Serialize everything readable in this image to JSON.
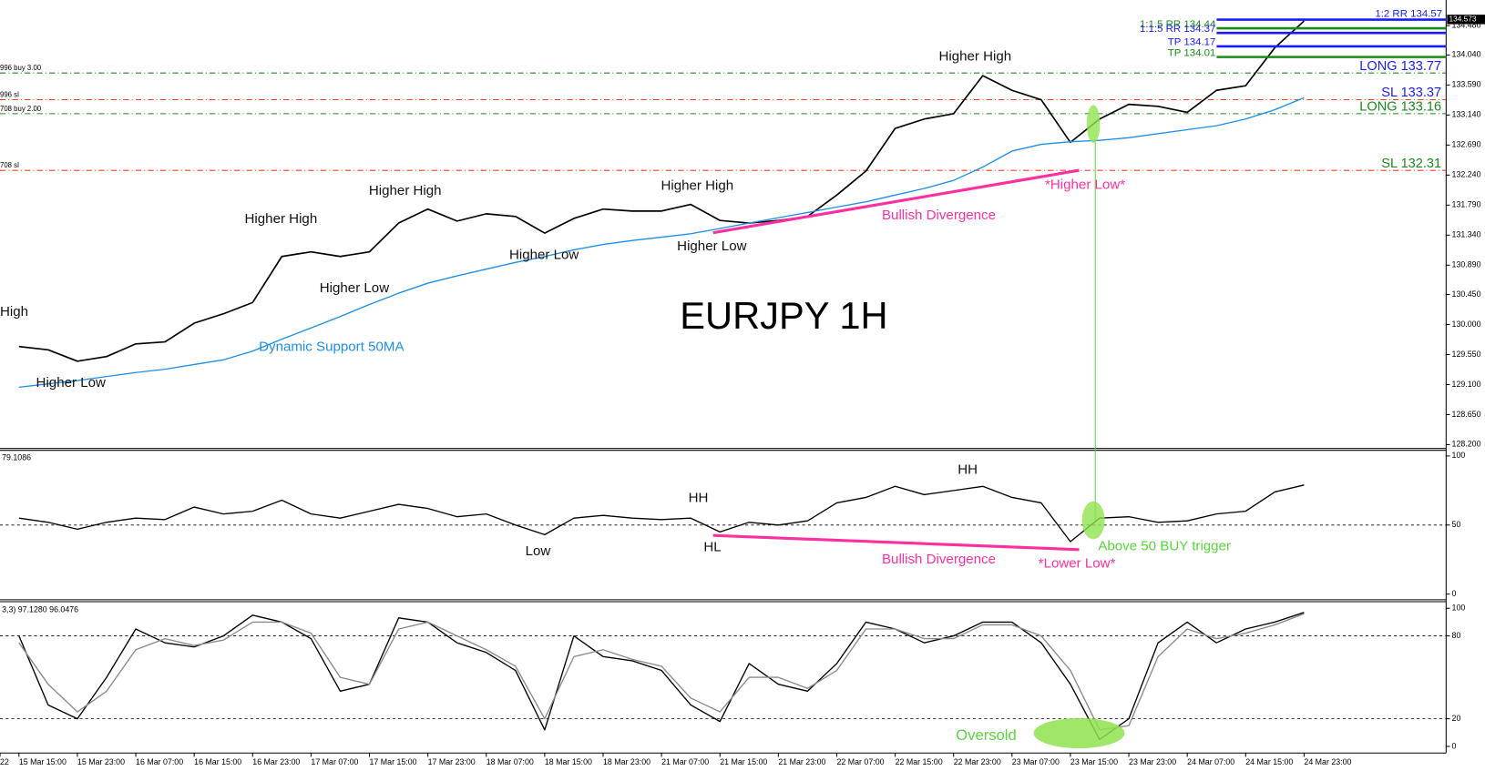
{
  "chart_data": [
    {
      "type": "line",
      "title": "EURJPY 1H",
      "ylim": [
        128.157,
        134.836
      ],
      "yticks": [
        {
          "value": 128.2,
          "label": "128.200"
        },
        {
          "value": 128.65,
          "label": "128.650"
        },
        {
          "value": 129.1,
          "label": "129.100"
        },
        {
          "value": 129.55,
          "label": "129.550"
        },
        {
          "value": 130.0,
          "label": "130.000"
        },
        {
          "value": 130.45,
          "label": "130.450"
        },
        {
          "value": 130.89,
          "label": "130.890"
        },
        {
          "value": 131.34,
          "label": "131.340"
        },
        {
          "value": 131.79,
          "label": "131.790"
        },
        {
          "value": 132.24,
          "label": "132.240"
        },
        {
          "value": 132.69,
          "label": "132.690"
        },
        {
          "value": 133.14,
          "label": "133.140"
        },
        {
          "value": 133.59,
          "label": "133.590"
        },
        {
          "value": 134.04,
          "label": "134.040"
        },
        {
          "value": 134.48,
          "label": "134.480"
        }
      ],
      "series": [
        {
          "color": "#000000",
          "values": [
            null,
            null,
            129.67,
            129.62,
            129.45,
            129.52,
            129.71,
            129.74,
            130.02,
            130.16,
            130.33,
            131.02,
            131.09,
            131.02,
            131.09,
            131.52,
            131.73,
            131.55,
            131.66,
            131.62,
            131.37,
            131.59,
            131.73,
            131.7,
            131.7,
            131.8,
            131.56,
            131.52,
            131.56,
            131.62,
            131.94,
            132.3,
            132.94,
            133.08,
            133.16,
            133.73,
            133.51,
            133.37,
            132.73,
            133.08,
            133.3,
            133.27,
            133.18,
            133.51,
            133.58,
            134.15,
            134.55
          ]
        },
        {
          "color": "#1e8fe8",
          "values": [
            null,
            null,
            129.06,
            129.11,
            129.16,
            129.22,
            129.28,
            129.33,
            129.4,
            129.47,
            129.6,
            129.78,
            129.95,
            130.12,
            130.3,
            130.47,
            130.62,
            130.73,
            130.83,
            130.93,
            131.02,
            131.12,
            131.2,
            131.26,
            131.31,
            131.36,
            131.44,
            131.52,
            131.6,
            131.68,
            131.76,
            131.84,
            131.94,
            132.04,
            132.16,
            132.36,
            132.6,
            132.7,
            132.74,
            132.76,
            132.8,
            132.86,
            132.92,
            132.98,
            133.08,
            133.22,
            133.4
          ]
        }
      ],
      "levels": [
        {
          "value": 133.77,
          "label": "LONG 133.77",
          "order_label": "996 buy 3.00",
          "color": "#1a8a1a",
          "label_color": "#1a1aff"
        },
        {
          "value": 133.37,
          "label": "SL 133.37",
          "order_label": "996 sl",
          "color": "#ff3b1f",
          "label_color": "#1a1aff"
        },
        {
          "value": 133.16,
          "label": "LONG 133.16",
          "order_label": "708 buy 2.00",
          "color": "#1a8a1a",
          "label_color": "#1a8a1a"
        },
        {
          "value": 132.31,
          "label": "SL 132.31",
          "order_label": "708 sl",
          "color": "#ff3b1f",
          "label_color": "#1a8a1a"
        }
      ],
      "targets": [
        {
          "value": 134.57,
          "label": "1:2 RR 134.57",
          "color": "#1a1aff",
          "label_side": "right"
        },
        {
          "value": 134.44,
          "label": "1:1.5 RR 134.44",
          "color": "#1a8a1a",
          "label_side": "left"
        },
        {
          "value": 134.37,
          "label": "1:1.5 RR 134.37",
          "color": "#1a1aff",
          "label_side": "left"
        },
        {
          "value": 134.17,
          "label": "TP 134.17",
          "color": "#1a1aff",
          "label_side": "left"
        },
        {
          "value": 134.01,
          "label": "TP 134.01",
          "color": "#1a8a1a",
          "label_side": "left"
        }
      ],
      "price_tag": {
        "value": 134.573,
        "label": "134.573"
      },
      "annotations": [
        "High",
        "Higher Low",
        "Higher High",
        "Higher Low",
        "Higher High",
        "Higher Low",
        "Higher High",
        "Higher Low",
        "Higher High",
        "Bullish Divergence",
        "*Higher Low*",
        "Dynamic Support 50MA"
      ]
    },
    {
      "type": "line",
      "title": "79.1086",
      "ylim": [
        0,
        100
      ],
      "yticks": [
        0,
        50,
        100
      ],
      "hlines": [
        50
      ],
      "series": [
        {
          "color": "#000000",
          "values": [
            null,
            null,
            55,
            52,
            47,
            52,
            55,
            54,
            63,
            58,
            60,
            68,
            58,
            55,
            60,
            65,
            62,
            56,
            58,
            50,
            43,
            55,
            57,
            55,
            54,
            55,
            45,
            52,
            50,
            53,
            66,
            70,
            78,
            72,
            75,
            78,
            70,
            66,
            38,
            55,
            56,
            52,
            53,
            58,
            60,
            74,
            79
          ]
        }
      ],
      "annotations": [
        "HH",
        "Low",
        "HL",
        "HH",
        "Bullish Divergence",
        "*Lower Low*",
        "Above 50 BUY trigger"
      ]
    },
    {
      "type": "line",
      "title": "3,3) 97.1280 96.0476",
      "ylim": [
        0,
        100
      ],
      "yticks": [
        0,
        20,
        80,
        100
      ],
      "hlines": [
        20,
        80
      ],
      "categories": [
        "22",
        null,
        "15 Mar 15:00",
        null,
        "15 Mar 23:00",
        null,
        "16 Mar 07:00",
        null,
        "16 Mar 15:00",
        null,
        "16 Mar 23:00",
        null,
        "17 Mar 07:00",
        null,
        "17 Mar 15:00",
        null,
        "17 Mar 23:00",
        null,
        "18 Mar 07:00",
        null,
        "18 Mar 15:00",
        null,
        "18 Mar 23:00",
        null,
        "21 Mar 07:00",
        null,
        "21 Mar 15:00",
        null,
        "21 Mar 23:00",
        null,
        "22 Mar 07:00",
        null,
        "22 Mar 15:00",
        null,
        "22 Mar 23:00",
        null,
        "23 Mar 07:00",
        null,
        "23 Mar 15:00",
        null,
        "23 Mar 23:00",
        null,
        "24 Mar 07:00",
        null,
        "24 Mar 15:00",
        null,
        "24 Mar 23:00"
      ],
      "series": [
        {
          "color": "#000000",
          "values": [
            null,
            null,
            80,
            30,
            20,
            50,
            85,
            75,
            72,
            80,
            95,
            90,
            78,
            40,
            45,
            93,
            90,
            75,
            68,
            55,
            12,
            80,
            65,
            62,
            55,
            30,
            18,
            60,
            45,
            40,
            60,
            90,
            85,
            75,
            80,
            90,
            90,
            75,
            45,
            5,
            20,
            75,
            90,
            75,
            85,
            90,
            97
          ]
        },
        {
          "color": "#8a8a8a",
          "values": [
            null,
            null,
            75,
            45,
            25,
            40,
            70,
            78,
            73,
            77,
            90,
            90,
            82,
            50,
            45,
            85,
            90,
            80,
            70,
            58,
            20,
            65,
            70,
            63,
            58,
            35,
            25,
            50,
            50,
            42,
            55,
            85,
            85,
            78,
            78,
            88,
            88,
            80,
            55,
            12,
            15,
            65,
            85,
            78,
            82,
            88,
            96
          ]
        }
      ],
      "annotations": [
        "Oversold"
      ]
    }
  ]
}
